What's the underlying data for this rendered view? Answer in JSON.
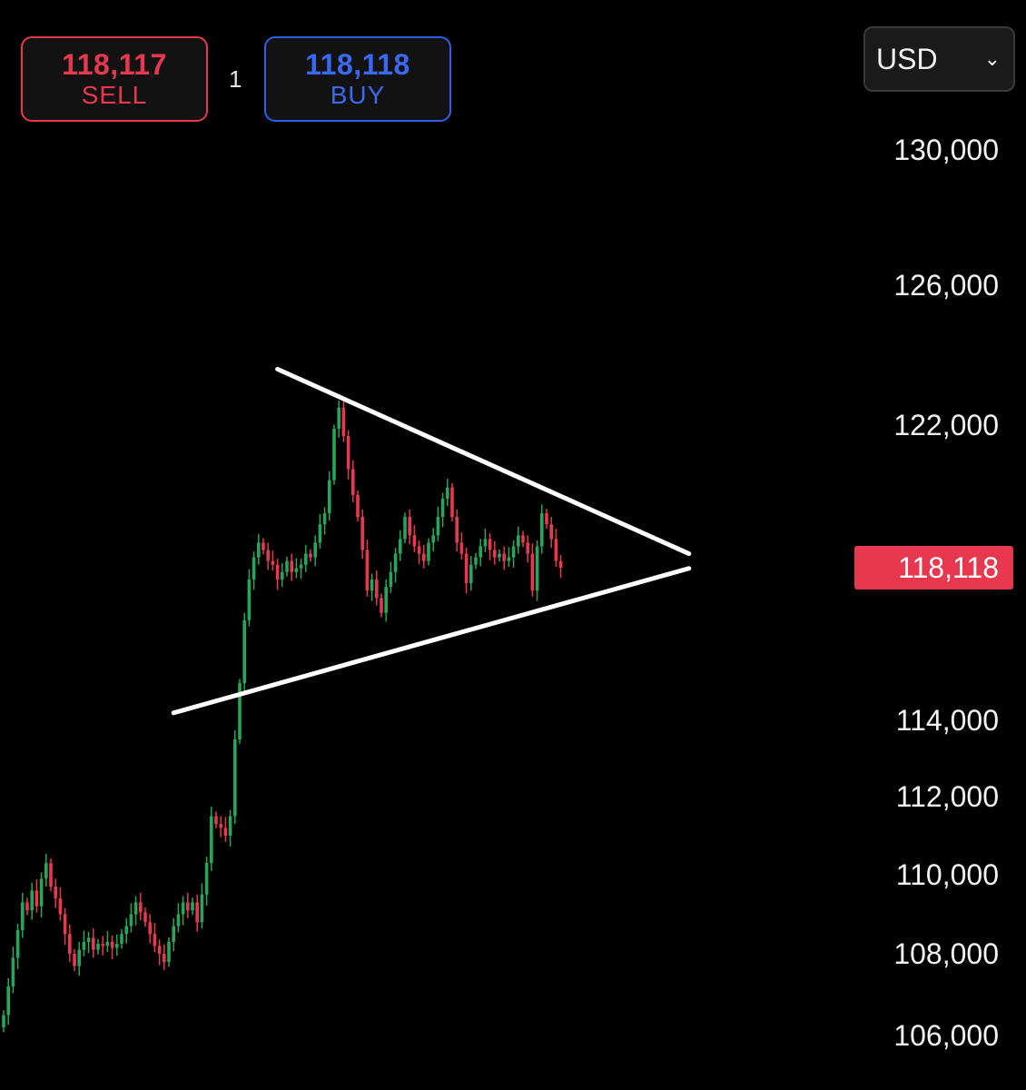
{
  "order_panel": {
    "sell": {
      "price": "118,117",
      "label": "SELL"
    },
    "quantity": "1",
    "buy": {
      "price": "118,118",
      "label": "BUY"
    }
  },
  "currency_select": {
    "value": "USD"
  },
  "colors": {
    "up": "#26a65b",
    "down": "#e8384f",
    "sell": "#e8384f",
    "buy": "#3b68f0",
    "trendline": "#ffffff",
    "background": "#000000"
  },
  "chart_data": {
    "type": "candlestick",
    "y_ticks": [
      {
        "value": 130000,
        "label": "130,000"
      },
      {
        "value": 126000,
        "label": "126,000"
      },
      {
        "value": 122000,
        "label": "122,000"
      },
      {
        "value": 114000,
        "label": "114,000"
      },
      {
        "value": 112000,
        "label": "112,000"
      },
      {
        "value": 110000,
        "label": "110,000"
      },
      {
        "value": 108000,
        "label": "108,000"
      },
      {
        "value": 106000,
        "label": "106,000"
      }
    ],
    "current_price": {
      "value": 118118,
      "label": "118,118"
    },
    "ylim": [
      105000,
      131500
    ],
    "trendlines": [
      {
        "name": "upper",
        "from": {
          "bar": 58,
          "price": 123600
        },
        "to": {
          "bar": 124,
          "price": 118500
        }
      },
      {
        "name": "lower",
        "from": {
          "bar": 36,
          "price": 114200
        },
        "to": {
          "bar": 124,
          "price": 118100
        }
      }
    ],
    "candles_close": [
      106500,
      107200,
      107900,
      108600,
      109300,
      109100,
      109600,
      109200,
      109900,
      110300,
      109700,
      109400,
      109000,
      108500,
      108000,
      107700,
      108100,
      108300,
      108400,
      108100,
      108250,
      108200,
      108300,
      108150,
      108250,
      108500,
      108700,
      109000,
      109300,
      109050,
      108800,
      108500,
      108200,
      108000,
      107800,
      108300,
      108700,
      109000,
      109300,
      109100,
      109300,
      108800,
      109500,
      110300,
      111500,
      111300,
      111200,
      111000,
      111500,
      113500,
      115000,
      116700,
      117800,
      118400,
      118800,
      118600,
      118300,
      118200,
      117800,
      118000,
      118300,
      118000,
      118100,
      118200,
      118500,
      118400,
      118800,
      119300,
      119600,
      120500,
      121900,
      122500,
      121700,
      120800,
      120100,
      119500,
      118600,
      117500,
      117800,
      117300,
      116900,
      117600,
      118000,
      118500,
      118900,
      119500,
      119000,
      118700,
      118500,
      118300,
      118800,
      119000,
      119500,
      120000,
      120300,
      119500,
      118800,
      118500,
      117700,
      118200,
      118400,
      118700,
      118900,
      118600,
      118400,
      118500,
      118300,
      118400,
      118700,
      119000,
      118800,
      118500,
      117500,
      118700,
      119600,
      119300,
      118900,
      118300,
      118118
    ]
  }
}
